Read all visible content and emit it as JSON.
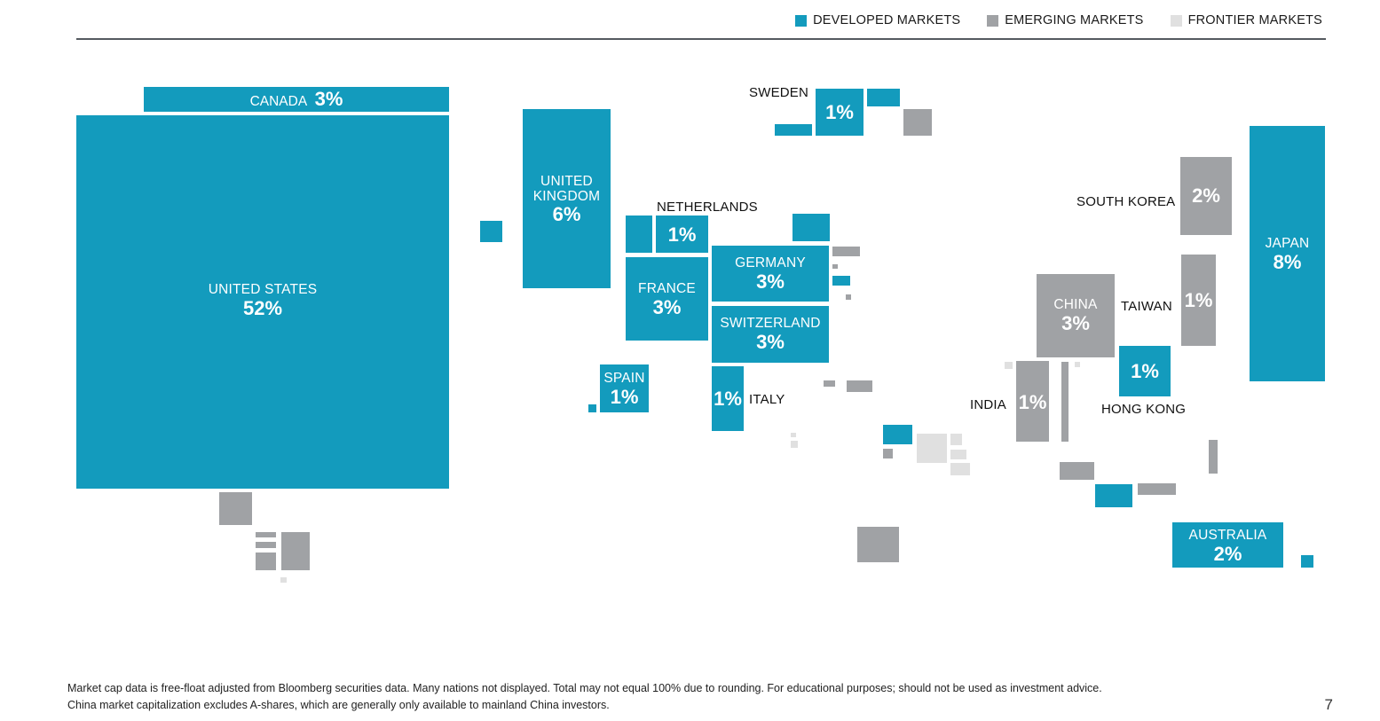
{
  "legend": {
    "developed": {
      "label": "DEVELOPED MARKETS",
      "color": "#139bbd"
    },
    "emerging": {
      "label": "EMERGING MARKETS",
      "color": "#a0a2a5"
    },
    "frontier": {
      "label": "FRONTIER MARKETS",
      "color": "#e0e0e0"
    }
  },
  "countries": {
    "us": {
      "name": "UNITED STATES",
      "pct": "52%",
      "market": "developed"
    },
    "canada": {
      "name": "CANADA",
      "pct": "3%",
      "market": "developed"
    },
    "uk": {
      "name_line1": "UNITED",
      "name_line2": "KINGDOM",
      "pct": "6%",
      "market": "developed"
    },
    "netherlands": {
      "name": "NETHERLANDS",
      "pct": "1%",
      "market": "developed"
    },
    "france": {
      "name": "FRANCE",
      "pct": "3%",
      "market": "developed"
    },
    "germany": {
      "name": "GERMANY",
      "pct": "3%",
      "market": "developed"
    },
    "switzerland": {
      "name": "SWITZERLAND",
      "pct": "3%",
      "market": "developed"
    },
    "spain": {
      "name": "SPAIN",
      "pct": "1%",
      "market": "developed"
    },
    "italy": {
      "name": "ITALY",
      "pct": "1%",
      "market": "developed"
    },
    "sweden": {
      "name": "SWEDEN",
      "pct": "1%",
      "market": "developed"
    },
    "south_korea": {
      "name": "SOUTH KOREA",
      "pct": "2%",
      "market": "emerging"
    },
    "china": {
      "name": "CHINA",
      "pct": "3%",
      "market": "emerging"
    },
    "taiwan": {
      "name": "TAIWAN",
      "pct": "1%",
      "market": "emerging"
    },
    "india": {
      "name": "INDIA",
      "pct": "1%",
      "market": "emerging"
    },
    "hong_kong": {
      "name": "HONG KONG",
      "pct": "1%",
      "market": "developed"
    },
    "japan": {
      "name": "JAPAN",
      "pct": "8%",
      "market": "developed"
    },
    "australia": {
      "name": "AUSTRALIA",
      "pct": "2%",
      "market": "developed"
    }
  },
  "footnote": {
    "line1": "Market cap data is free-float adjusted from Bloomberg securities data. Many nations not displayed. Total may not equal 100% due to rounding. For educational purposes; should not be used as investment advice.",
    "line2": "China market capitalization excludes A-shares, which are generally only available to mainland China investors."
  },
  "page_number": "7"
}
